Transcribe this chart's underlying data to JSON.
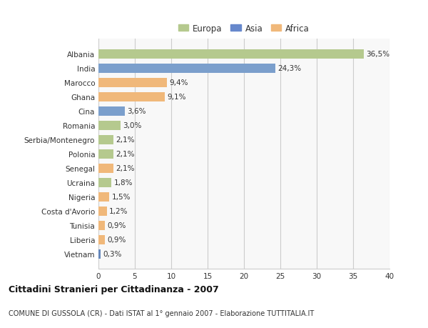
{
  "categories": [
    "Albania",
    "India",
    "Marocco",
    "Ghana",
    "Cina",
    "Romania",
    "Serbia/Montenegro",
    "Polonia",
    "Senegal",
    "Ucraina",
    "Nigeria",
    "Costa d'Avorio",
    "Tunisia",
    "Liberia",
    "Vietnam"
  ],
  "values": [
    36.5,
    24.3,
    9.4,
    9.1,
    3.6,
    3.0,
    2.1,
    2.1,
    2.1,
    1.8,
    1.5,
    1.2,
    0.9,
    0.9,
    0.3
  ],
  "labels": [
    "36,5%",
    "24,3%",
    "9,4%",
    "9,1%",
    "3,6%",
    "3,0%",
    "2,1%",
    "2,1%",
    "2,1%",
    "1,8%",
    "1,5%",
    "1,2%",
    "0,9%",
    "0,9%",
    "0,3%"
  ],
  "continents": [
    "Europa",
    "Asia",
    "Africa",
    "Africa",
    "Asia",
    "Europa",
    "Europa",
    "Europa",
    "Africa",
    "Europa",
    "Africa",
    "Africa",
    "Africa",
    "Africa",
    "Asia"
  ],
  "bar_colors": {
    "Europa": "#b5c98e",
    "Asia": "#7b9fcc",
    "Africa": "#f0b87a",
    "Vietnam": "#6688bb"
  },
  "legend_colors": {
    "Europa": "#b5c98e",
    "Asia": "#6688cc",
    "Africa": "#f0b87a"
  },
  "xlim": [
    0,
    40
  ],
  "xticks": [
    0,
    5,
    10,
    15,
    20,
    25,
    30,
    35,
    40
  ],
  "title": "Cittadini Stranieri per Cittadinanza - 2007",
  "subtitle": "COMUNE DI GUSSOLA (CR) - Dati ISTAT al 1° gennaio 2007 - Elaborazione TUTTITALIA.IT",
  "background_color": "#ffffff",
  "plot_bg_color": "#f8f8f8",
  "grid_color": "#cccccc",
  "bar_height": 0.65,
  "label_fontsize": 7.5,
  "tick_fontsize": 7.5,
  "legend_fontsize": 8.5,
  "title_fontsize": 9,
  "subtitle_fontsize": 7
}
